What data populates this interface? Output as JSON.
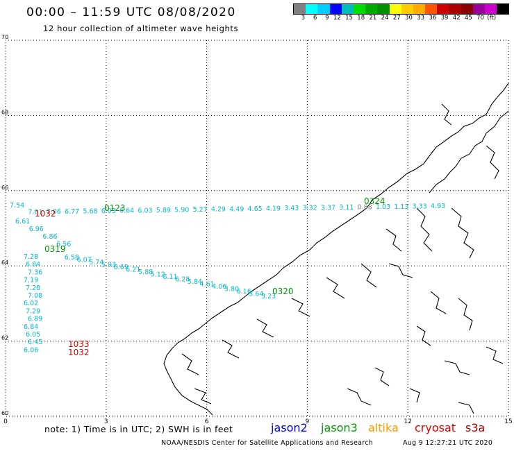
{
  "header": {
    "title": "00:00 – 11:59 UTC 08/08/2020",
    "subtitle": "12 hour collection of altimeter wave heights"
  },
  "colorbar": {
    "colors": [
      "#808080",
      "#00ffff",
      "#00ccff",
      "#0000ff",
      "#00bbbb",
      "#00dd00",
      "#00aa00",
      "#009000",
      "#ffff00",
      "#ffcc00",
      "#ffaa00",
      "#ff5500",
      "#cc0000",
      "#aa0000",
      "#8b0000",
      "#990099",
      "#cc00cc",
      "#000000"
    ],
    "labels": [
      "3",
      "6",
      "9",
      "12",
      "15",
      "18",
      "21",
      "24",
      "27",
      "30",
      "33",
      "36",
      "39",
      "42",
      "45",
      "70",
      "(ft)"
    ]
  },
  "axes": {
    "x_ticks": [
      "0",
      "3",
      "6",
      "9",
      "12",
      "15"
    ],
    "y_ticks": [
      "70",
      "68",
      "66",
      "64",
      "62",
      "60"
    ],
    "lon_range": [
      0,
      15
    ],
    "lat_range": [
      60,
      70
    ],
    "grid": true
  },
  "tracks": {
    "color_cyan": "#00bbcc",
    "color_green": "#009900",
    "color_red": "#dd0000",
    "track1_values": [
      "7.54",
      "7.01",
      "7.06",
      "6.77",
      "5.68",
      "6.03",
      "6.64",
      "6.03",
      "5.89",
      "5.90",
      "5.27",
      "4.29",
      "4.49",
      "4.65",
      "4.19",
      "3.43",
      "3.32",
      "3.37",
      "3.11",
      "0.88",
      "1.03",
      "1.13",
      "3.33",
      "4.93"
    ],
    "track1_labels": [
      "1032",
      "0123",
      "0324"
    ],
    "track2_values": [
      "6.61",
      "6.96",
      "6.86",
      "6.56",
      "6.58",
      "6.07",
      "5.74",
      "5.93",
      "6.69",
      "6.21",
      "5.88",
      "5.12",
      "6.11",
      "6.28",
      "5.84",
      "4.61",
      "4.06",
      "3.80",
      "6.16",
      "3.64",
      "3.23"
    ],
    "track2_labels": [
      "0319",
      "0320"
    ],
    "track3_values": [
      "7.28",
      "6.84",
      "7.36",
      "7.19",
      "7.28",
      "7.08",
      "6.02",
      "7.29",
      "6.89",
      "6.84",
      "6.05",
      "6.45",
      "6.06"
    ],
    "track3_labels": [
      "1033",
      "1032"
    ]
  },
  "footer": {
    "note": "note:  1) Time is in UTC;  2) SWH is in feet",
    "credit": "NOAA/NESDIS Center for Satellite Applications and Research",
    "timestamp": "Aug  9 12:27:21 UTC 2020"
  },
  "legend": [
    {
      "name": "jason2",
      "color": "#0000dd"
    },
    {
      "name": "jason3",
      "color": "#009900"
    },
    {
      "name": "altika",
      "color": "#ff9900"
    },
    {
      "name": "cryosat",
      "color": "#dd0000"
    },
    {
      "name": "s3a",
      "color": "#aa0000"
    }
  ]
}
